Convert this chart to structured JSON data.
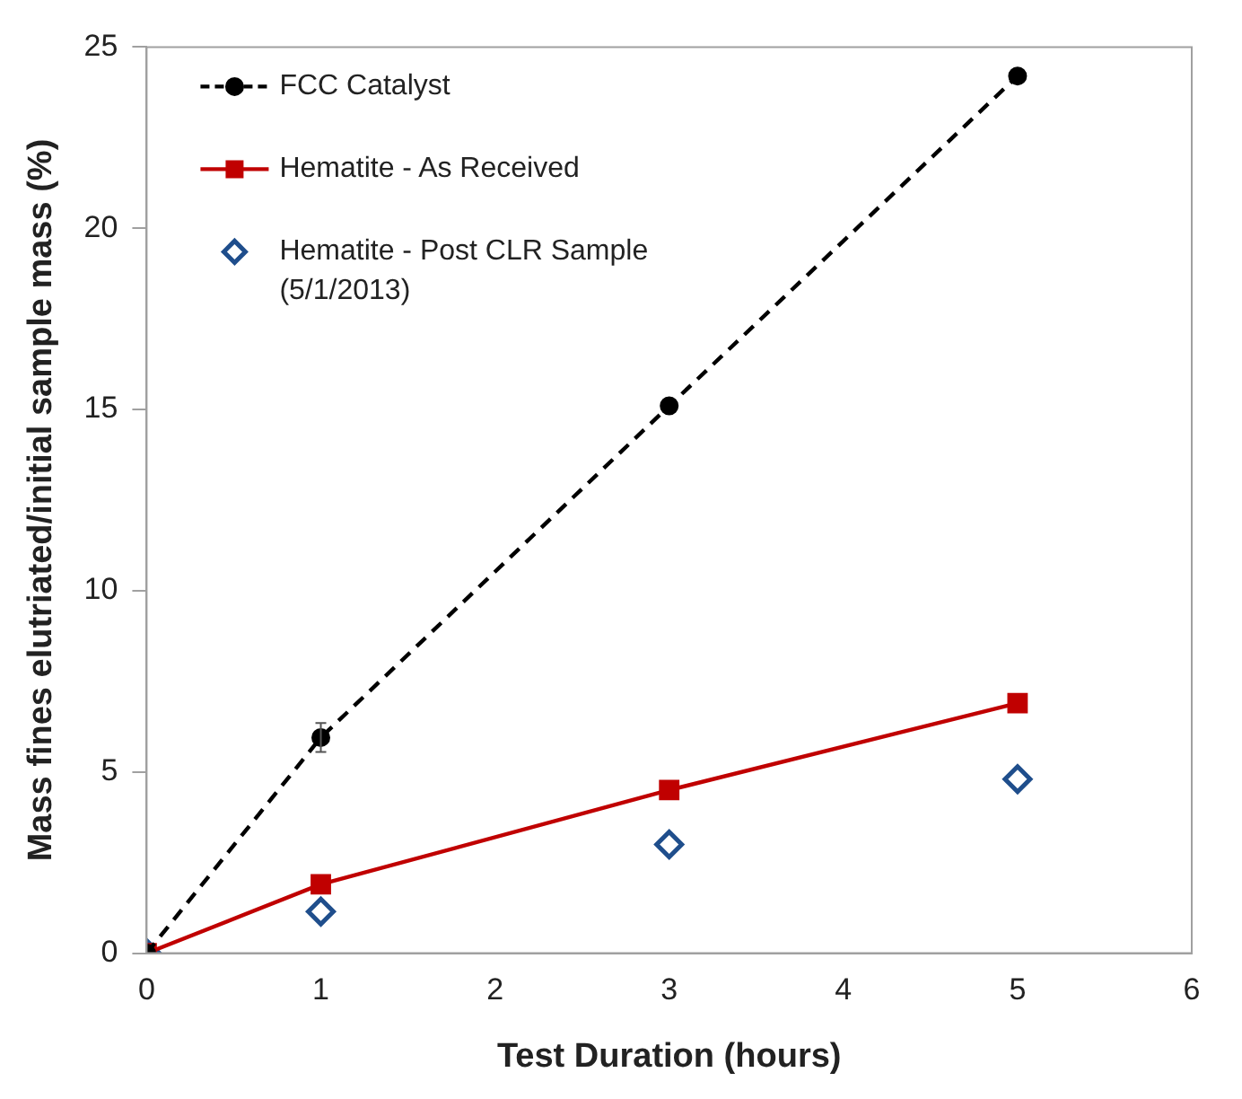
{
  "chart_data": {
    "type": "line",
    "xlabel": "Test Duration (hours)",
    "ylabel": "Mass fines elutriated/initial sample mass (%)",
    "xlim": [
      0,
      6
    ],
    "xticks": [
      0,
      1,
      2,
      3,
      4,
      5,
      6
    ],
    "ylim": [
      0,
      25
    ],
    "yticks": [
      0,
      5,
      10,
      15,
      20,
      25
    ],
    "grid": false,
    "legend": "top left",
    "x": [
      0,
      1,
      3,
      5
    ],
    "series": [
      {
        "name": "FCC Catalyst",
        "type": "line",
        "color": "#000000",
        "marker": "circle",
        "line_style": "dashed",
        "values": [
          0,
          5.95,
          15.1,
          24.2
        ],
        "errors": [
          null,
          0.4,
          null,
          null
        ]
      },
      {
        "name": "Hematite - As Received",
        "type": "line",
        "color": "#c00000",
        "marker": "square",
        "line_style": "solid",
        "values": [
          0,
          1.9,
          4.5,
          6.9
        ]
      },
      {
        "name": "Hematite - Post CLR Sample (5/1/2013)",
        "type": "scatter",
        "color": "#1f4e8c",
        "marker": "diamond",
        "values": [
          0,
          1.15,
          3.0,
          4.8
        ]
      }
    ]
  }
}
